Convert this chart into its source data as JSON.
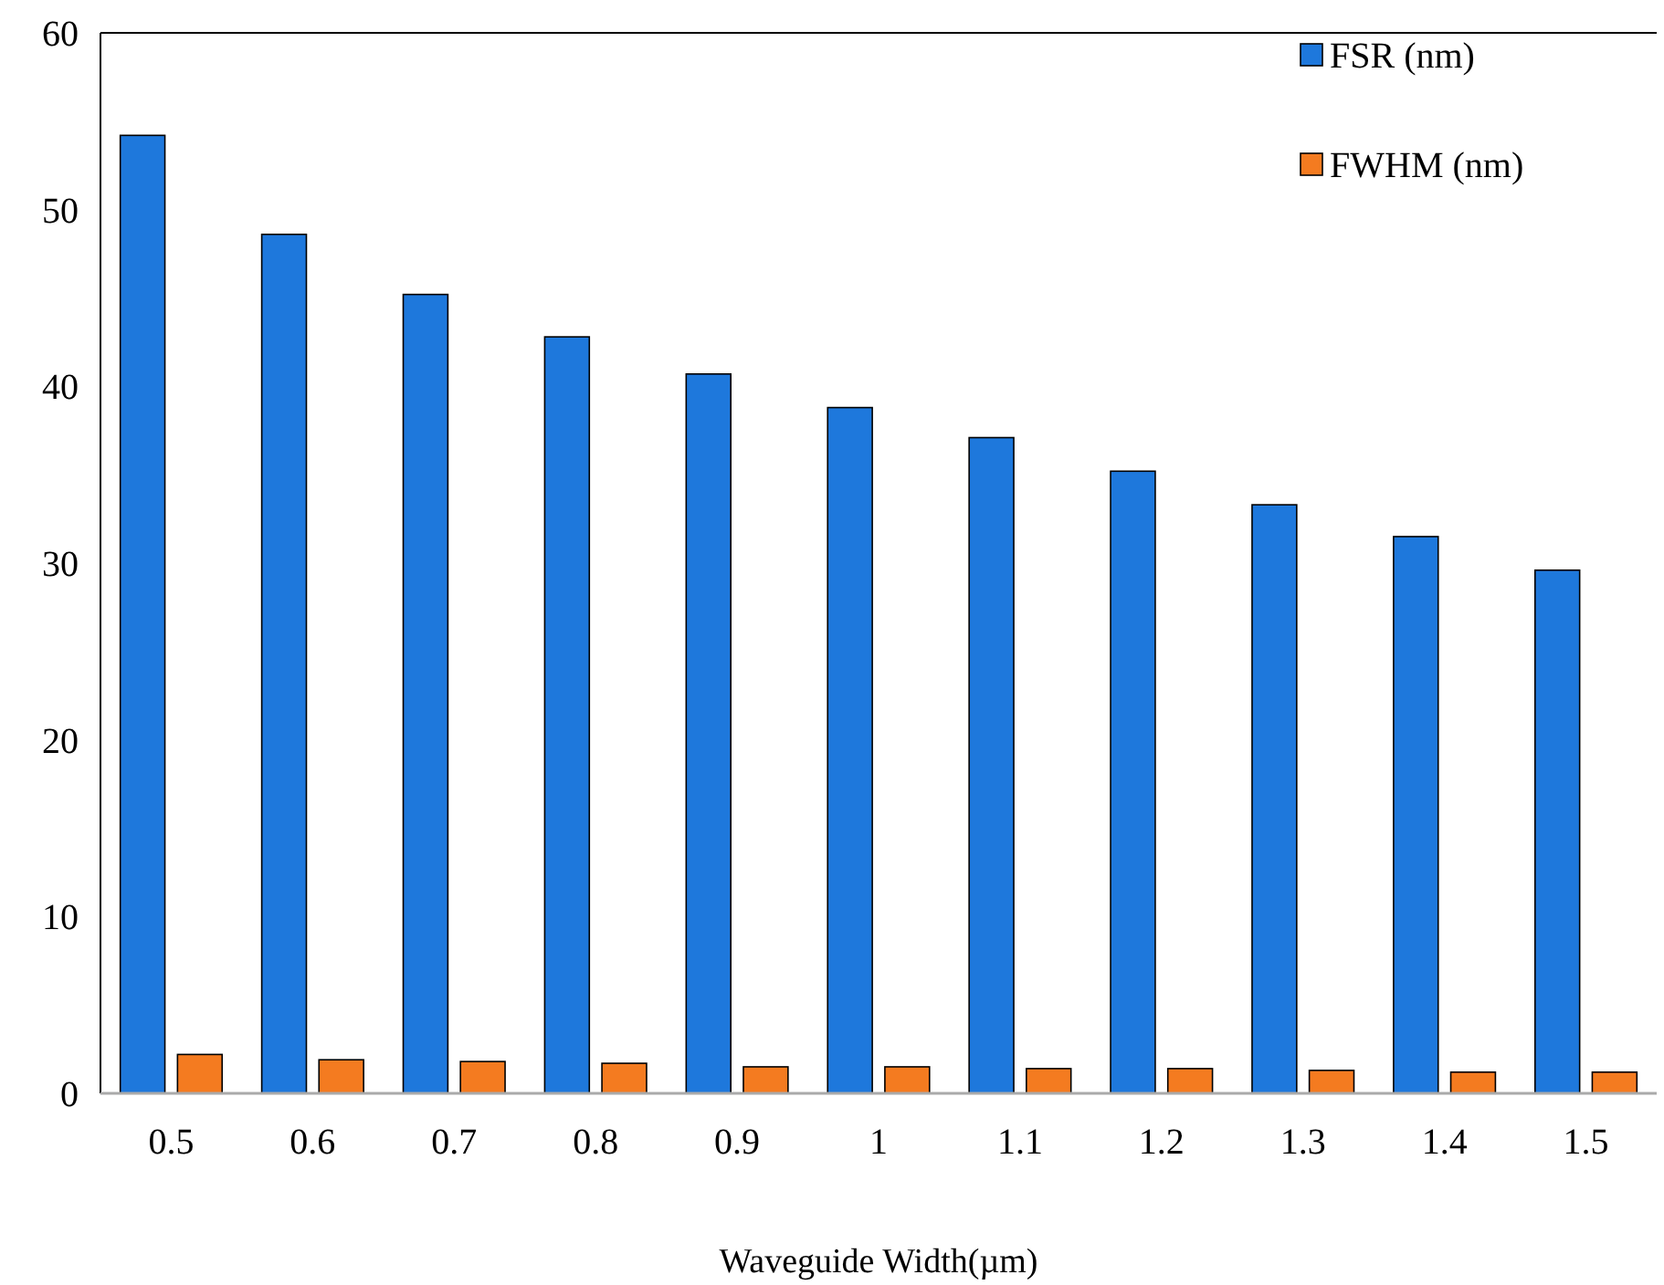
{
  "chart_data": {
    "type": "bar",
    "xlabel": "Waveguide Width(µm)",
    "categories": [
      "0.5",
      "0.6",
      "0.7",
      "0.8",
      "0.9",
      "1",
      "1.1",
      "1.2",
      "1.3",
      "1.4",
      "1.5"
    ],
    "series": [
      {
        "name": "FSR (nm)",
        "color": "#1e78dc",
        "values": [
          54.2,
          48.6,
          45.2,
          42.8,
          40.7,
          38.8,
          37.1,
          35.2,
          33.3,
          31.5,
          29.6
        ]
      },
      {
        "name": "FWHM (nm)",
        "color": "#f47b20",
        "values": [
          2.2,
          1.9,
          1.8,
          1.7,
          1.5,
          1.5,
          1.4,
          1.4,
          1.3,
          1.2,
          1.2
        ]
      }
    ],
    "ylim": [
      0,
      60
    ],
    "yticks": [
      0,
      10,
      20,
      30,
      40,
      50,
      60
    ],
    "grid": false,
    "legend": "top right"
  }
}
